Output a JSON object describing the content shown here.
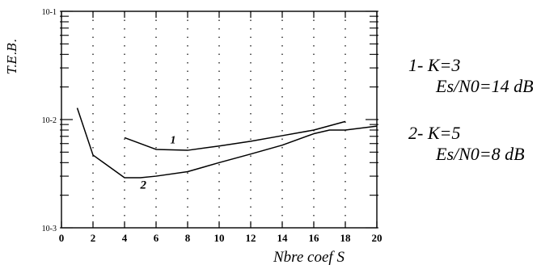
{
  "chart_data": {
    "type": "line",
    "ylabel": "T.E.B.",
    "xlabel": "Nbre coef S",
    "x_ticks": [
      0,
      2,
      4,
      6,
      8,
      10,
      12,
      14,
      16,
      18,
      20
    ],
    "x_tick_labels": [
      "0",
      "2",
      "4",
      "6",
      "8",
      "10",
      "12",
      "14",
      "16",
      "18",
      "20"
    ],
    "xlim": [
      0,
      20
    ],
    "y_scale": "log",
    "ylim": [
      0.001,
      0.1
    ],
    "y_ticks": [
      0.1,
      0.01,
      0.001
    ],
    "y_tick_labels": [
      "10-1",
      "10-2",
      "10-3"
    ],
    "grid": true,
    "series": [
      {
        "name": "1",
        "x": [
          4,
          6,
          8,
          10,
          12,
          14,
          16,
          18
        ],
        "y": [
          0.0068,
          0.0053,
          0.0052,
          0.0057,
          0.0063,
          0.0071,
          0.008,
          0.0096
        ]
      },
      {
        "name": "2",
        "x": [
          1,
          2,
          4,
          5,
          6,
          8,
          10,
          12,
          14,
          16,
          17,
          18,
          20
        ],
        "y": [
          0.0128,
          0.0047,
          0.0029,
          0.0029,
          0.003,
          0.0033,
          0.004,
          0.0048,
          0.0058,
          0.0074,
          0.008,
          0.008,
          0.0087
        ]
      }
    ],
    "curve_labels": [
      "1",
      "2"
    ],
    "legend": {
      "placement": "right",
      "items": [
        {
          "line1": "1- K=3",
          "line2": "Es/N0=14 dB"
        },
        {
          "line1": "2- K=5",
          "line2": "Es/N0=8 dB"
        }
      ]
    }
  }
}
